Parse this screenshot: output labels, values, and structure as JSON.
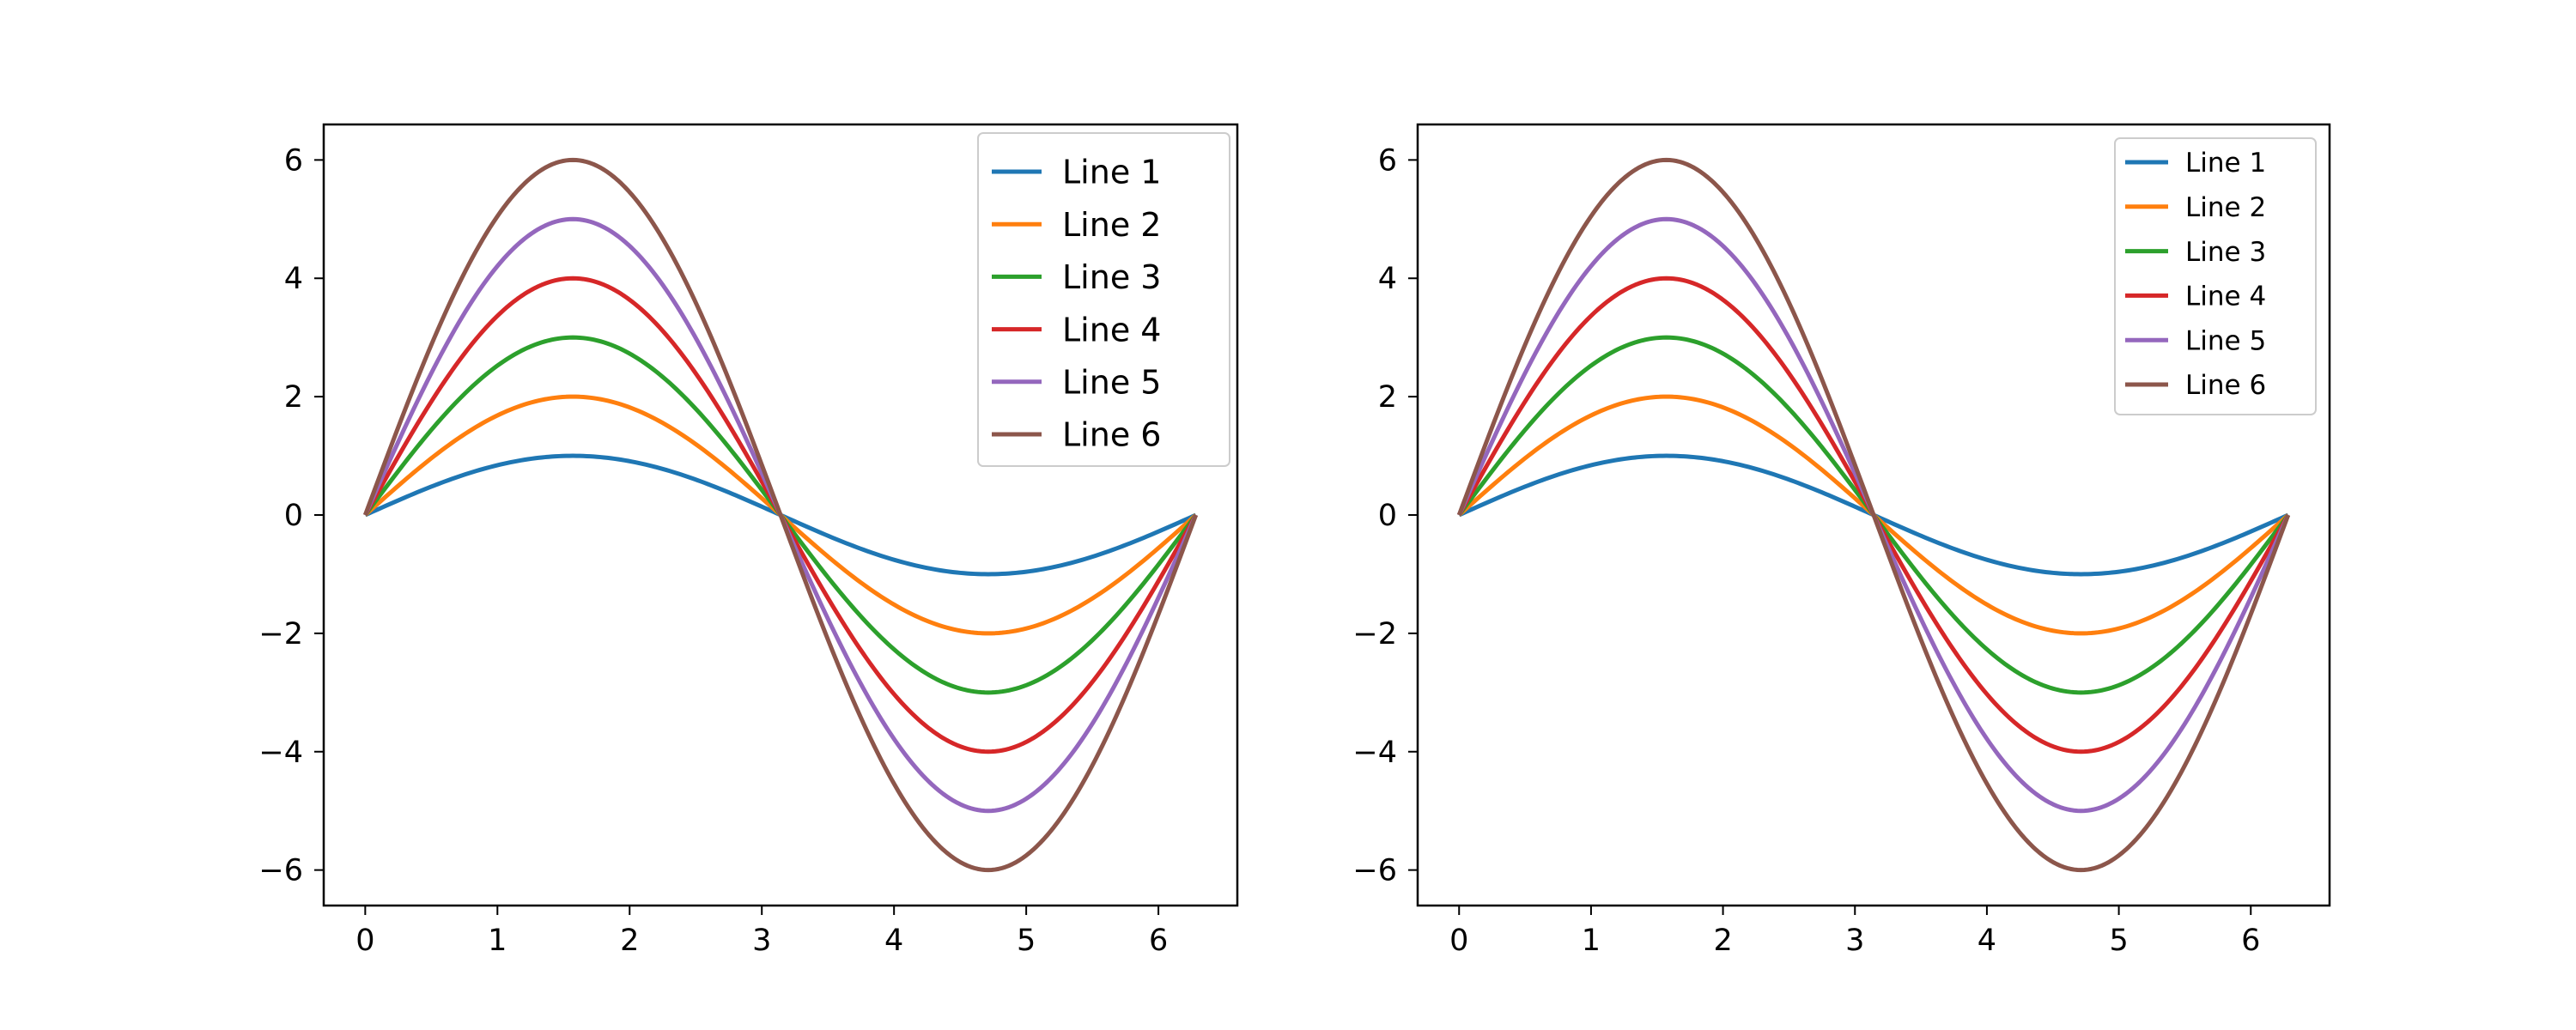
{
  "chart_data": [
    {
      "type": "line",
      "title": "",
      "xlabel": "",
      "ylabel": "",
      "xlim": [
        -0.314,
        6.597
      ],
      "ylim": [
        -6.6,
        6.6
      ],
      "xticks": [
        0,
        1,
        2,
        3,
        4,
        5,
        6
      ],
      "yticks": [
        -6,
        -4,
        -2,
        0,
        2,
        4,
        6
      ],
      "xtick_labels": [
        "0",
        "1",
        "2",
        "3",
        "4",
        "5",
        "6"
      ],
      "ytick_labels": [
        "−6",
        "−4",
        "−2",
        "0",
        "2",
        "4",
        "6"
      ],
      "x": [
        0,
        0.5236,
        1.0472,
        1.5708,
        2.0944,
        2.618,
        3.1416,
        3.6652,
        4.1888,
        4.7124,
        5.236,
        5.7596,
        6.2832
      ],
      "legend": {
        "location": "upper right",
        "fontsize": "large"
      },
      "series": [
        {
          "name": "Line 1",
          "color": "#1f77b4",
          "values": [
            0,
            0.5,
            0.866,
            1,
            0.866,
            0.5,
            0,
            -0.5,
            -0.866,
            -1,
            -0.866,
            -0.5,
            0
          ]
        },
        {
          "name": "Line 2",
          "color": "#ff7f0e",
          "values": [
            0,
            1,
            1.732,
            2,
            1.732,
            1,
            0,
            -1,
            -1.732,
            -2,
            -1.732,
            -1,
            0
          ]
        },
        {
          "name": "Line 3",
          "color": "#2ca02c",
          "values": [
            0,
            1.5,
            2.598,
            3,
            2.598,
            1.5,
            0,
            -1.5,
            -2.598,
            -3,
            -2.598,
            -1.5,
            0
          ]
        },
        {
          "name": "Line 4",
          "color": "#d62728",
          "values": [
            0,
            2,
            3.464,
            4,
            3.464,
            2,
            0,
            -2,
            -3.464,
            -4,
            -3.464,
            -2,
            0
          ]
        },
        {
          "name": "Line 5",
          "color": "#9467bd",
          "values": [
            0,
            2.5,
            4.33,
            5,
            4.33,
            2.5,
            0,
            -2.5,
            -4.33,
            -5,
            -4.33,
            -2.5,
            0
          ]
        },
        {
          "name": "Line 6",
          "color": "#8c564b",
          "values": [
            0,
            3,
            5.196,
            6,
            5.196,
            3,
            0,
            -3,
            -5.196,
            -6,
            -5.196,
            -3,
            0
          ]
        }
      ]
    },
    {
      "type": "line",
      "title": "",
      "xlabel": "",
      "ylabel": "",
      "xlim": [
        -0.314,
        6.597
      ],
      "ylim": [
        -6.6,
        6.6
      ],
      "xticks": [
        0,
        1,
        2,
        3,
        4,
        5,
        6
      ],
      "yticks": [
        -6,
        -4,
        -2,
        0,
        2,
        4,
        6
      ],
      "xtick_labels": [
        "0",
        "1",
        "2",
        "3",
        "4",
        "5",
        "6"
      ],
      "ytick_labels": [
        "−6",
        "−4",
        "−2",
        "0",
        "2",
        "4",
        "6"
      ],
      "x": [
        0,
        0.5236,
        1.0472,
        1.5708,
        2.0944,
        2.618,
        3.1416,
        3.6652,
        4.1888,
        4.7124,
        5.236,
        5.7596,
        6.2832
      ],
      "legend": {
        "location": "upper right",
        "fontsize": "small"
      },
      "series": [
        {
          "name": "Line 1",
          "color": "#1f77b4",
          "values": [
            0,
            0.5,
            0.866,
            1,
            0.866,
            0.5,
            0,
            -0.5,
            -0.866,
            -1,
            -0.866,
            -0.5,
            0
          ]
        },
        {
          "name": "Line 2",
          "color": "#ff7f0e",
          "values": [
            0,
            1,
            1.732,
            2,
            1.732,
            1,
            0,
            -1,
            -1.732,
            -2,
            -1.732,
            -1,
            0
          ]
        },
        {
          "name": "Line 3",
          "color": "#2ca02c",
          "values": [
            0,
            1.5,
            2.598,
            3,
            2.598,
            1.5,
            0,
            -1.5,
            -2.598,
            -3,
            -2.598,
            -1.5,
            0
          ]
        },
        {
          "name": "Line 4",
          "color": "#d62728",
          "values": [
            0,
            2,
            3.464,
            4,
            3.464,
            2,
            0,
            -2,
            -3.464,
            -4,
            -3.464,
            -2,
            0
          ]
        },
        {
          "name": "Line 5",
          "color": "#9467bd",
          "values": [
            0,
            2.5,
            4.33,
            5,
            4.33,
            2.5,
            0,
            -2.5,
            -4.33,
            -5,
            -4.33,
            -2.5,
            0
          ]
        },
        {
          "name": "Line 6",
          "color": "#8c564b",
          "values": [
            0,
            3,
            5.196,
            6,
            5.196,
            3,
            0,
            -3,
            -5.196,
            -6,
            -5.196,
            -3,
            0
          ]
        }
      ]
    }
  ]
}
